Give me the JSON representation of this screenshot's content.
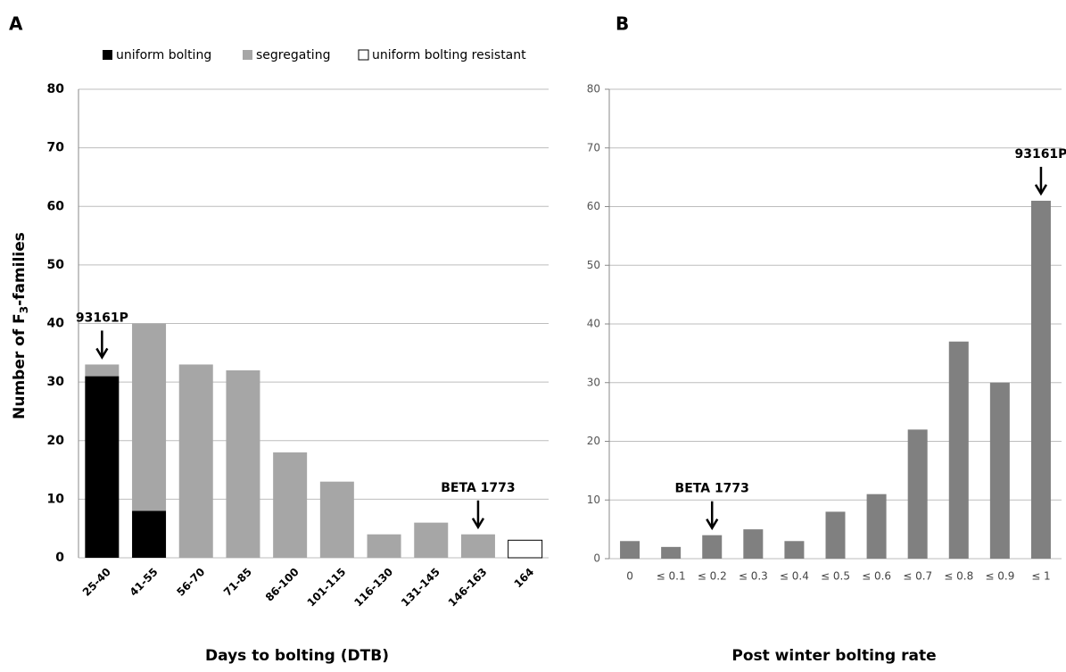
{
  "chart_data": [
    {
      "type": "stacked_bar",
      "title": "A",
      "categories": [
        "25-40",
        "41-55",
        "56-70",
        "71-85",
        "86-100",
        "101-115",
        "116-130",
        "131-145",
        "146-163",
        "164"
      ],
      "series": [
        {
          "name": "uniform bolting",
          "color": "#000000",
          "values": [
            31,
            8,
            0,
            0,
            0,
            0,
            0,
            0,
            0,
            0
          ]
        },
        {
          "name": "segregating",
          "color": "#a6a6a6",
          "values": [
            2,
            32,
            33,
            32,
            18,
            13,
            4,
            6,
            4,
            0
          ]
        },
        {
          "name": "uniform bolting resistant",
          "color": "#ffffff",
          "values": [
            0,
            0,
            0,
            0,
            0,
            0,
            0,
            0,
            0,
            3
          ]
        }
      ],
      "ylim": [
        0,
        80
      ],
      "yticks": [
        0,
        10,
        20,
        30,
        40,
        50,
        60,
        70,
        80
      ],
      "grid": true,
      "xlabel": "Days to bolting (DTB)",
      "ylabel_parts": [
        "Number of F",
        "3",
        "-families"
      ],
      "annotations": [
        {
          "text": "93161P",
          "at": "25-40"
        },
        {
          "text": "BETA 1773",
          "at": "146-163"
        }
      ]
    },
    {
      "type": "bar",
      "title": "B",
      "categories": [
        "0",
        "≤ 0.1",
        "≤ 0.2",
        "≤ 0.3",
        "≤ 0.4",
        "≤ 0.5",
        "≤ 0.6",
        "≤ 0.7",
        "≤ 0.8",
        "≤ 0.9",
        "≤ 1"
      ],
      "values": [
        3,
        2,
        4,
        5,
        3,
        8,
        11,
        22,
        37,
        30,
        61
      ],
      "color": "#808080",
      "ylim": [
        0,
        80
      ],
      "yticks": [
        0,
        10,
        20,
        30,
        40,
        50,
        60,
        70,
        80
      ],
      "grid": true,
      "xlabel": "Post winter bolting rate",
      "annotations": [
        {
          "text": "BETA 1773",
          "at": "≤ 0.2"
        },
        {
          "text": "93161P",
          "at": "≤ 1"
        }
      ]
    }
  ]
}
